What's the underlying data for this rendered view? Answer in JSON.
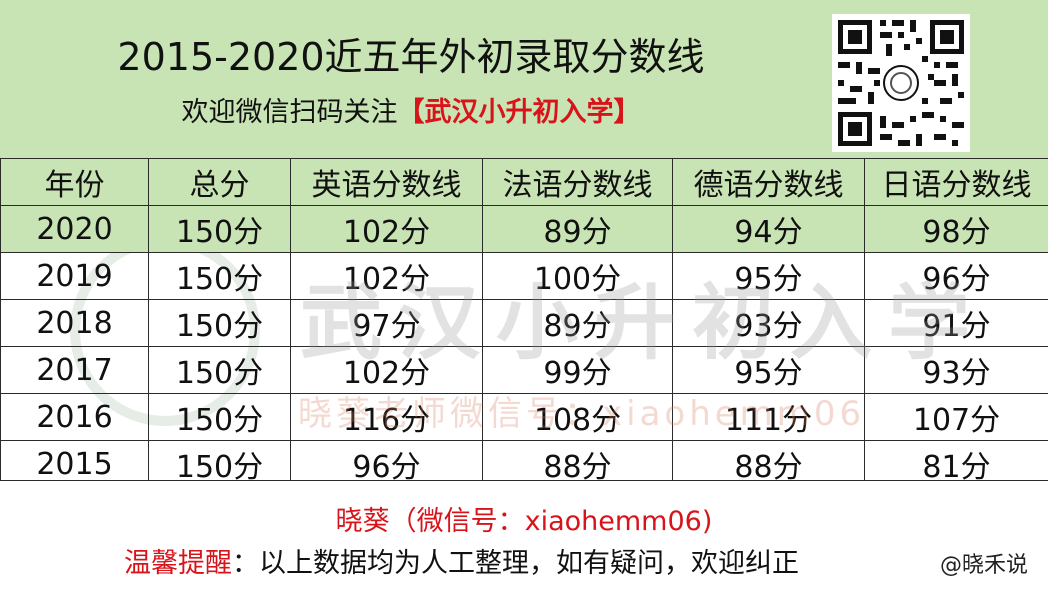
{
  "header": {
    "title": "2015-2020近五年外初录取分数线",
    "subtitle_prefix": "欢迎微信扫码关注",
    "subtitle_brand": "【武汉小升初入学】"
  },
  "table": {
    "columns": [
      "年份",
      "总分",
      "英语分数线",
      "法语分数线",
      "德语分数线",
      "日语分数线"
    ],
    "rows": [
      [
        "2020",
        "150分",
        "102分",
        "89分",
        "94分",
        "98分"
      ],
      [
        "2019",
        "150分",
        "102分",
        "100分",
        "95分",
        "96分"
      ],
      [
        "2018",
        "150分",
        "97分",
        "89分",
        "93分",
        "91分"
      ],
      [
        "2017",
        "150分",
        "102分",
        "99分",
        "95分",
        "93分"
      ],
      [
        "2016",
        "150分",
        "116分",
        "108分",
        "111分",
        "107分"
      ],
      [
        "2015",
        "150分",
        "96分",
        "88分",
        "88分",
        "81分"
      ]
    ]
  },
  "watermark": {
    "big": "武汉小升初入学",
    "mid": "晓葵老师微信号：xiaohemm06"
  },
  "footer": {
    "contact": "晓葵（微信号：xiaohemm06)",
    "reminder_lead": "温馨提醒",
    "reminder_text": "：以上数据均为人工整理，如有疑问，欢迎纠正",
    "credit": "@晓禾说"
  },
  "colors": {
    "header_bg": "#c9e4b4",
    "accent_red": "#d8141b"
  },
  "icons": {
    "qr": "qr-code-icon"
  }
}
